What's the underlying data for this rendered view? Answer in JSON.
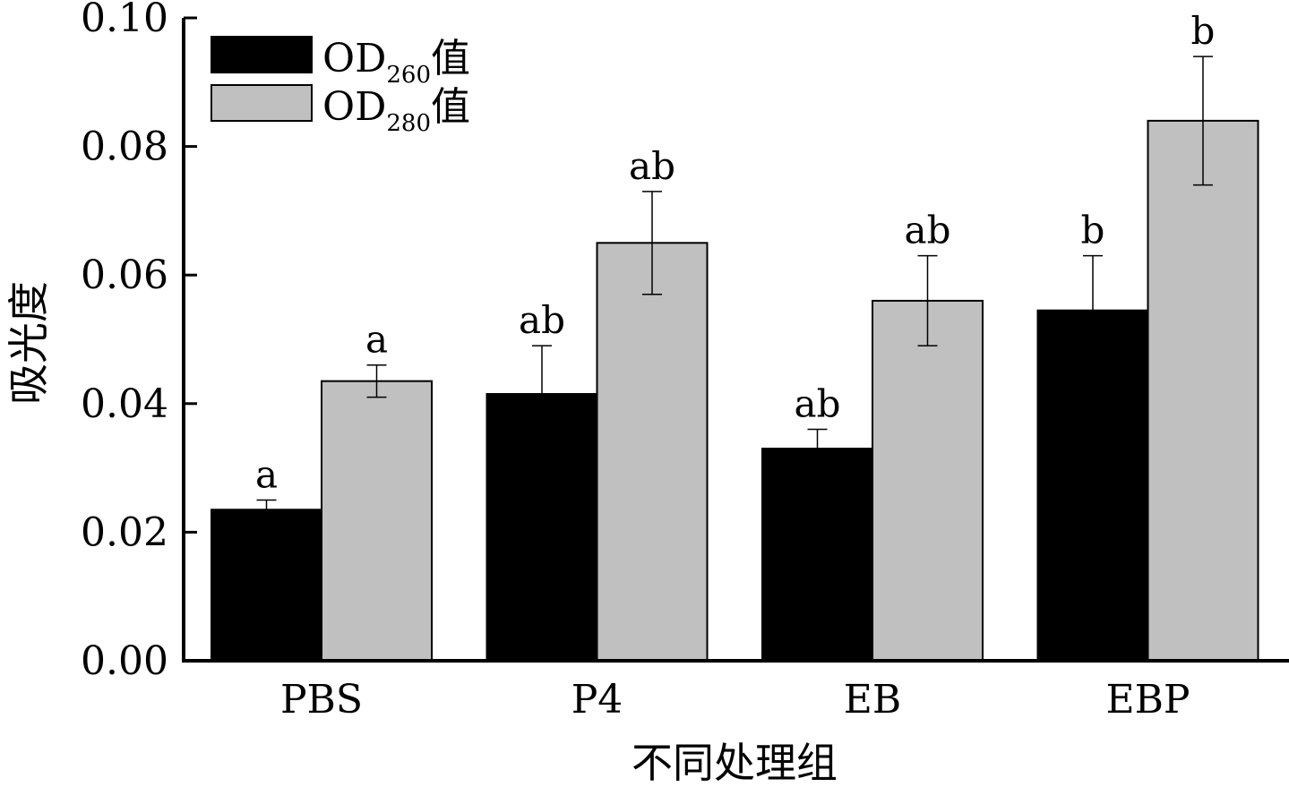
{
  "chart_data": {
    "type": "bar",
    "xlabel": "不同处理组",
    "ylabel": "吸光度",
    "ylim": [
      0,
      0.1
    ],
    "yticks": [
      0.0,
      0.02,
      0.04,
      0.06,
      0.08,
      0.1
    ],
    "ytick_labels": [
      "0.00",
      "0.02",
      "0.04",
      "0.06",
      "0.08",
      "0.10"
    ],
    "categories": [
      "PBS",
      "P4",
      "EB",
      "EBP"
    ],
    "legend_position": "top-left",
    "grid": false,
    "series": [
      {
        "name_main": "OD",
        "name_sub": "260",
        "name_suffix": "值",
        "color": "#000000",
        "values": [
          0.0235,
          0.0415,
          0.033,
          0.0545
        ],
        "error_upper": [
          0.025,
          0.049,
          0.036,
          0.063
        ],
        "error_lower": [
          0.0235,
          0.0415,
          0.033,
          0.0545
        ],
        "significance": [
          "a",
          "ab",
          "ab",
          "b"
        ]
      },
      {
        "name_main": "OD",
        "name_sub": "280",
        "name_suffix": "值",
        "color": "#c0c0c0",
        "values": [
          0.0435,
          0.065,
          0.056,
          0.084
        ],
        "error_upper": [
          0.046,
          0.073,
          0.063,
          0.094
        ],
        "error_lower": [
          0.041,
          0.057,
          0.049,
          0.074
        ],
        "significance": [
          "a",
          "ab",
          "ab",
          "b"
        ]
      }
    ]
  }
}
